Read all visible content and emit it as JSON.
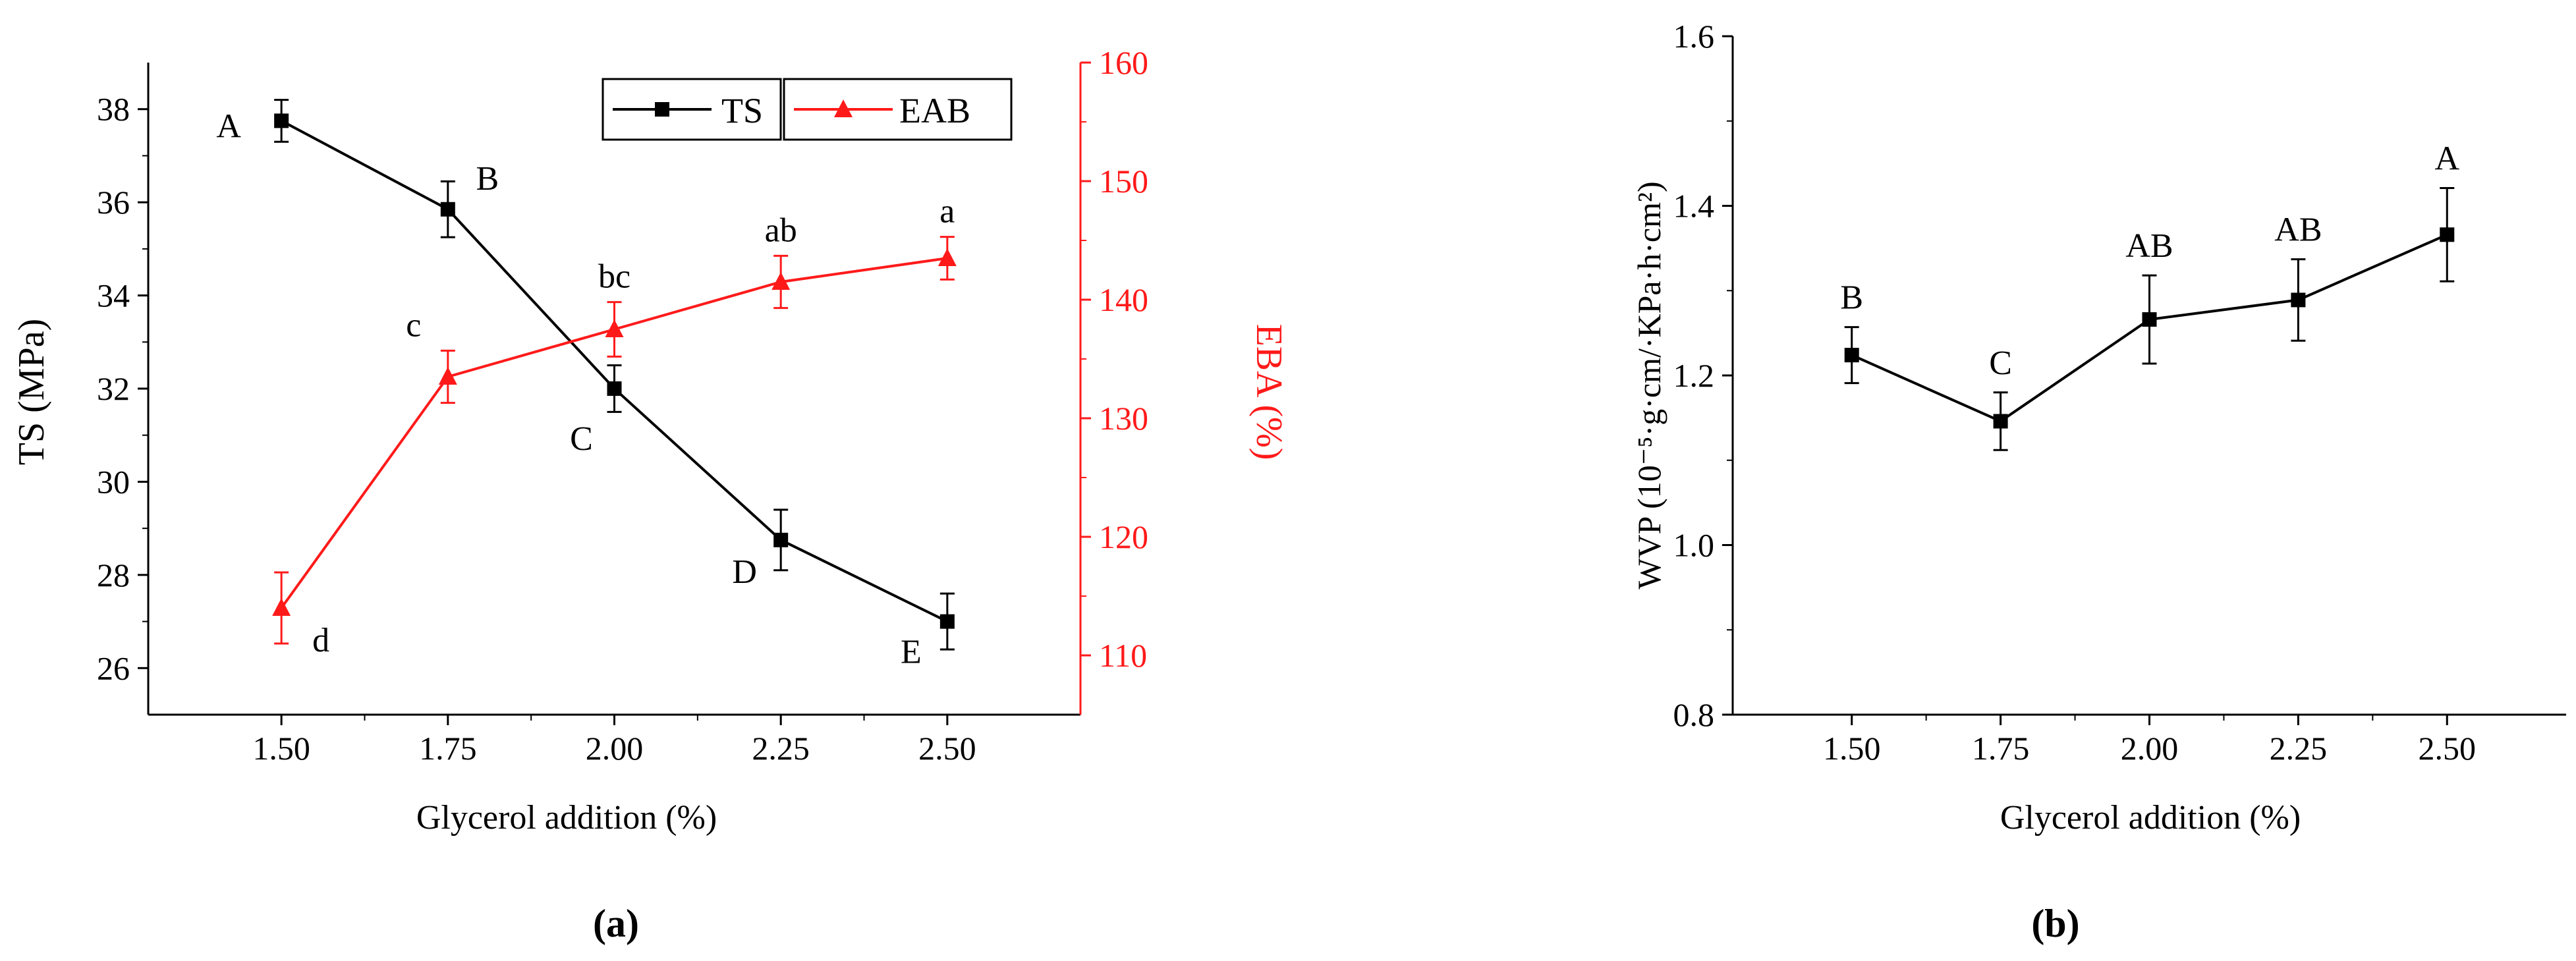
{
  "panel_labels": [
    "(a)",
    "(b)"
  ],
  "chart_data": [
    {
      "type": "line",
      "panel": "a",
      "xlabel": "Glycerol addition (%)",
      "x": [
        1.5,
        1.75,
        2.0,
        2.25,
        2.5
      ],
      "x_tick_labels": [
        "1.50",
        "1.75",
        "2.00",
        "2.25",
        "2.50"
      ],
      "xlim": [
        1.3,
        2.7
      ],
      "y_left": {
        "label": "TS (MPa)",
        "lim": [
          25,
          39
        ],
        "ticks": [
          "26",
          "28",
          "30",
          "32",
          "34",
          "36",
          "38"
        ],
        "color": "#000000"
      },
      "y_right": {
        "label": "EBA (%)",
        "lim": [
          105,
          160
        ],
        "ticks": [
          "110",
          "120",
          "130",
          "140",
          "150",
          "160"
        ],
        "color": "#ff1a1a"
      },
      "legend_position": "top-right",
      "series": [
        {
          "name": "TS",
          "axis": "left",
          "color": "#000000",
          "marker": "square",
          "values": [
            37.75,
            35.85,
            32.0,
            28.75,
            27.0
          ],
          "errors": [
            0.45,
            0.6,
            0.5,
            0.65,
            0.6
          ],
          "letters": [
            "A",
            "B",
            "C",
            "D",
            "E"
          ]
        },
        {
          "name": "EAB",
          "axis": "right",
          "color": "#ff1a1a",
          "marker": "triangle",
          "values": [
            114,
            133.5,
            137.5,
            141.5,
            143.5
          ],
          "errors": [
            3,
            2.2,
            2.3,
            2.2,
            1.8
          ],
          "letters": [
            "d",
            "c",
            "bc",
            "ab",
            "a"
          ]
        }
      ]
    },
    {
      "type": "line",
      "panel": "b",
      "xlabel": "Glycerol addition (%)",
      "ylabel": "WVP (10⁻⁵·g·cm/·KPa·h·cm²)",
      "x": [
        1.5,
        1.75,
        2.0,
        2.25,
        2.5
      ],
      "x_tick_labels": [
        "1.50",
        "1.75",
        "2.00",
        "2.25",
        "2.50"
      ],
      "xlim": [
        1.3,
        2.7
      ],
      "ylim": [
        0.8,
        1.6
      ],
      "y_tick_labels": [
        "0.8",
        "1.0",
        "1.2",
        "1.4",
        "1.6"
      ],
      "series": [
        {
          "color": "#000000",
          "marker": "square",
          "values": [
            1.224,
            1.146,
            1.266,
            1.289,
            1.366
          ],
          "errors": [
            0.033,
            0.034,
            0.052,
            0.048,
            0.055
          ],
          "letters": [
            "B",
            "C",
            "AB",
            "AB",
            "A"
          ]
        }
      ]
    }
  ]
}
